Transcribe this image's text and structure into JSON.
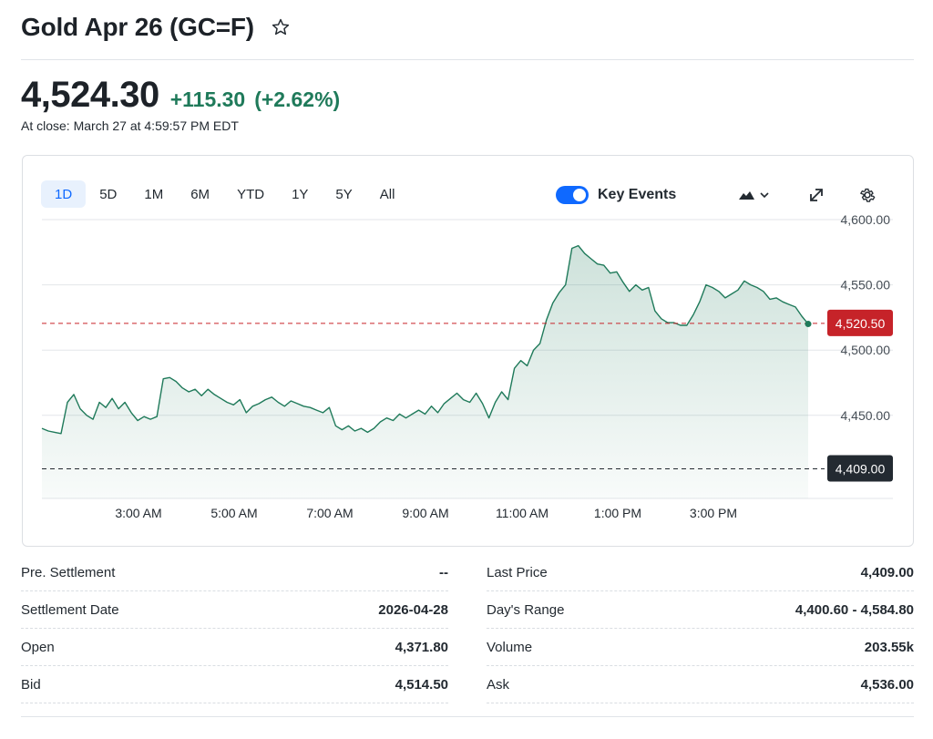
{
  "header": {
    "title": "Gold Apr 26 (GC=F)"
  },
  "quote": {
    "price": "4,524.30",
    "change": "+115.30",
    "change_pct": "(+2.62%)",
    "close_time": "At close: March 27 at 4:59:57 PM EDT"
  },
  "chart": {
    "ranges": [
      {
        "label": "1D",
        "active": true
      },
      {
        "label": "5D",
        "active": false
      },
      {
        "label": "1M",
        "active": false
      },
      {
        "label": "6M",
        "active": false
      },
      {
        "label": "YTD",
        "active": false
      },
      {
        "label": "1Y",
        "active": false
      },
      {
        "label": "5Y",
        "active": false
      },
      {
        "label": "All",
        "active": false
      }
    ],
    "key_events_label": "Key Events",
    "key_events_on": true
  },
  "chart_data": {
    "type": "area",
    "xlabel": "",
    "ylabel": "",
    "x_ticks": [
      "3:00 AM",
      "5:00 AM",
      "7:00 AM",
      "9:00 AM",
      "11:00 AM",
      "1:00 PM",
      "3:00 PM"
    ],
    "y_ticks": [
      "4,600.00",
      "4,550.00",
      "4,500.00",
      "4,450.00"
    ],
    "ylim": [
      4390,
      4600
    ],
    "current_price_label": "4,520.50",
    "current_price": 4520.5,
    "prev_close_label": "4,409.00",
    "prev_close": 4409,
    "colors": {
      "line": "#1f7a5a",
      "current": "#c62329",
      "prev_close": "#232a31"
    },
    "series": [
      {
        "values": [
          4440,
          4438,
          4437,
          4436,
          4460,
          4466,
          4455,
          4450,
          4447,
          4460,
          4456,
          4463,
          4455,
          4460,
          4452,
          4446,
          4449,
          4447,
          4449,
          4478,
          4479,
          4476,
          4471,
          4468,
          4470,
          4465,
          4470,
          4466,
          4463,
          4460,
          4458,
          4462,
          4452,
          4457,
          4459,
          4462,
          4464,
          4460,
          4457,
          4461,
          4459,
          4457,
          4456,
          4454,
          4452,
          4456,
          4442,
          4439,
          4442,
          4438,
          4440,
          4437,
          4440,
          4445,
          4448,
          4446,
          4451,
          4448,
          4451,
          4454,
          4451,
          4457,
          4452,
          4459,
          4463,
          4467,
          4462,
          4460,
          4467,
          4459,
          4448,
          4460,
          4468,
          4462,
          4486,
          4492,
          4488,
          4500,
          4505,
          4523,
          4536,
          4544,
          4550,
          4578,
          4580,
          4574,
          4570,
          4566,
          4565,
          4559,
          4560,
          4552,
          4545,
          4550,
          4546,
          4548,
          4530,
          4524,
          4521,
          4521,
          4519,
          4519,
          4527,
          4537,
          4550,
          4548,
          4545,
          4540,
          4543,
          4546,
          4553,
          4550,
          4548,
          4545,
          4539,
          4540,
          4537,
          4535,
          4533,
          4526,
          4520
        ]
      }
    ]
  },
  "stats": {
    "left": [
      {
        "label": "Pre. Settlement",
        "value": "--"
      },
      {
        "label": "Settlement Date",
        "value": "2026-04-28"
      },
      {
        "label": "Open",
        "value": "4,371.80"
      },
      {
        "label": "Bid",
        "value": "4,514.50"
      }
    ],
    "right": [
      {
        "label": "Last Price",
        "value": "4,409.00"
      },
      {
        "label": "Day's Range",
        "value": "4,400.60 - 4,584.80"
      },
      {
        "label": "Volume",
        "value": "203.55k"
      },
      {
        "label": "Ask",
        "value": "4,536.00"
      }
    ]
  }
}
